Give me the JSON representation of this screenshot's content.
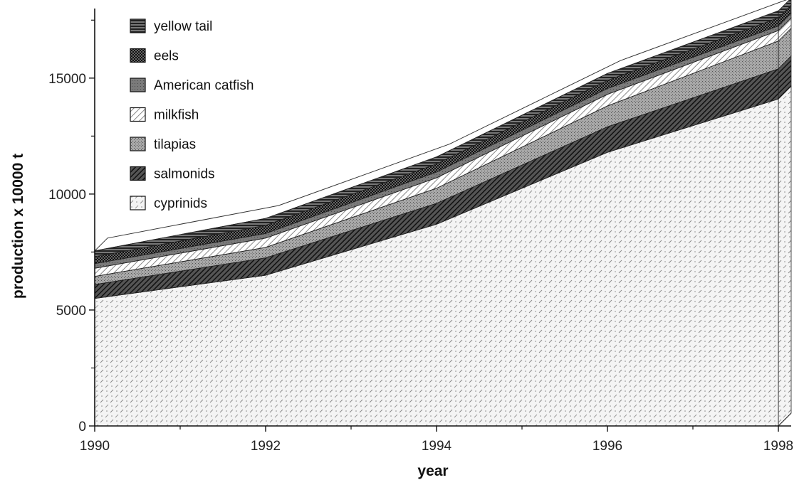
{
  "chart_data": {
    "type": "area",
    "stacked": true,
    "style": "3d-stacked-area",
    "xlabel": "year",
    "ylabel": "production  x  10000 t",
    "x": [
      1990,
      1992,
      1994,
      1996,
      1998
    ],
    "x_ticks": [
      "1990",
      "1992",
      "1994",
      "1996",
      "1998"
    ],
    "y_ticks": [
      "0",
      "5000",
      "10000",
      "15000"
    ],
    "ylim": [
      0,
      18000
    ],
    "grid": false,
    "legend_position": "top-left",
    "series": [
      {
        "name": "cyprinids",
        "values": [
          5500,
          6500,
          8700,
          11800,
          14100
        ],
        "pattern": "dots-dashes",
        "color": "#f2f2f2"
      },
      {
        "name": "salmonids",
        "values": [
          600,
          750,
          900,
          1100,
          1300
        ],
        "pattern": "diagonal-dark",
        "color": "#2a2a2a"
      },
      {
        "name": "tilapias",
        "values": [
          350,
          450,
          650,
          900,
          1200
        ],
        "pattern": "stipple-gray",
        "color": "#8a8a8a"
      },
      {
        "name": "milkfish",
        "values": [
          350,
          400,
          450,
          500,
          450
        ],
        "pattern": "diagonal-light",
        "color": "#cfcfcf"
      },
      {
        "name": "American catfish",
        "values": [
          200,
          200,
          250,
          250,
          200
        ],
        "pattern": "mid-gray",
        "color": "#6f6f6f"
      },
      {
        "name": "eels",
        "values": [
          300,
          350,
          350,
          350,
          350
        ],
        "pattern": "checker-dark",
        "color": "#1a1a1a"
      },
      {
        "name": "yellow tail",
        "values": [
          250,
          300,
          300,
          300,
          300
        ],
        "pattern": "hstripe-dark",
        "color": "#3a3a3a"
      }
    ]
  }
}
